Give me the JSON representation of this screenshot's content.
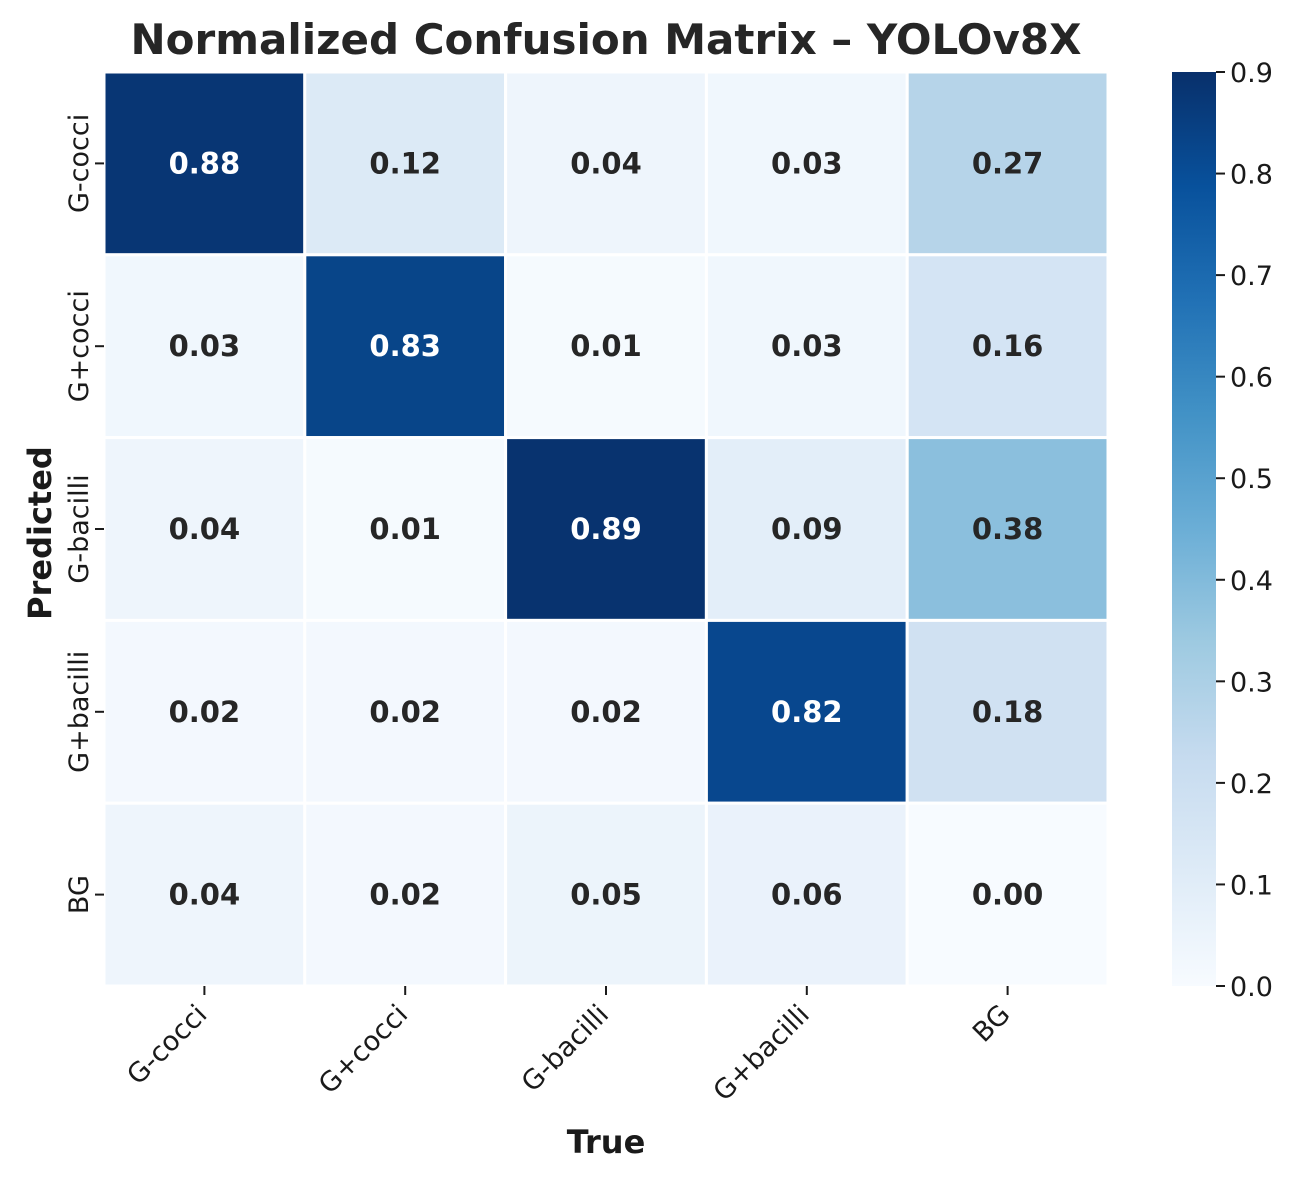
{
  "chart_data": {
    "type": "heatmap",
    "title": "Normalized Confusion Matrix – YOLOv8X",
    "xlabel": "True",
    "ylabel": "Predicted",
    "x_categories": [
      "G-cocci",
      "G+cocci",
      "G-bacilli",
      "G+bacilli",
      "BG"
    ],
    "y_categories": [
      "G-cocci",
      "G+cocci",
      "G-bacilli",
      "G+bacilli",
      "BG"
    ],
    "values": [
      [
        0.88,
        0.12,
        0.04,
        0.03,
        0.27
      ],
      [
        0.03,
        0.83,
        0.01,
        0.03,
        0.16
      ],
      [
        0.04,
        0.01,
        0.89,
        0.09,
        0.38
      ],
      [
        0.02,
        0.02,
        0.02,
        0.82,
        0.18
      ],
      [
        0.04,
        0.02,
        0.05,
        0.06,
        0.0
      ]
    ],
    "cell_labels": [
      [
        "0.88",
        "0.12",
        "0.04",
        "0.03",
        "0.27"
      ],
      [
        "0.03",
        "0.83",
        "0.01",
        "0.03",
        "0.16"
      ],
      [
        "0.04",
        "0.01",
        "0.89",
        "0.09",
        "0.38"
      ],
      [
        "0.02",
        "0.02",
        "0.02",
        "0.82",
        "0.18"
      ],
      [
        "0.04",
        "0.02",
        "0.05",
        "0.06",
        "0.00"
      ]
    ],
    "colormap": "Blues",
    "colorbar": {
      "range": [
        0.0,
        0.9
      ],
      "ticks": [
        0.0,
        0.1,
        0.2,
        0.3,
        0.4,
        0.5,
        0.6,
        0.7,
        0.8,
        0.9
      ],
      "tick_labels": [
        "0.0",
        "0.1",
        "0.2",
        "0.3",
        "0.4",
        "0.5",
        "0.6",
        "0.7",
        "0.8",
        "0.9"
      ]
    },
    "colors": {
      "text_dark": "#262626",
      "text_light": "#ffffff",
      "grid_line": "#ffffff"
    },
    "legend": "colorbar-right"
  }
}
